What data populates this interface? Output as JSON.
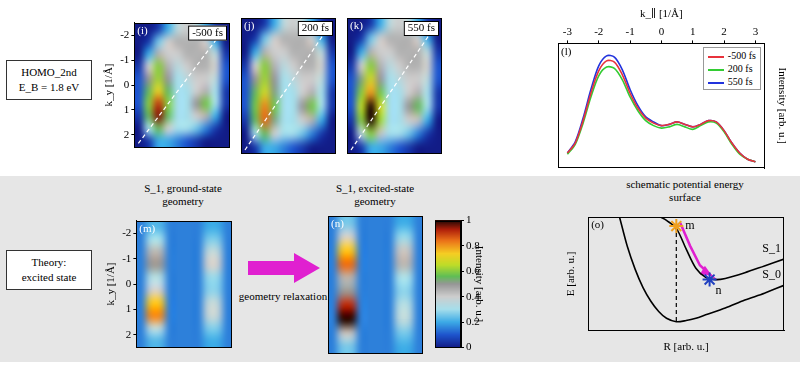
{
  "rows": [
    {
      "label": [
        "HOMO_2nd",
        "E_B = 1.8 eV"
      ]
    },
    {
      "label": [
        "Theory:",
        "excited state"
      ]
    }
  ],
  "arrow_label": "geometry relaxation",
  "chart_data": [
    {
      "type": "heatmap",
      "panel": "(i)",
      "annotation": "-500 fs",
      "ylabel": "k_y [1/Å]",
      "xlim": [
        -2.5,
        2.5
      ],
      "ylim": [
        2.5,
        -2.5
      ],
      "yticks": [
        -2,
        -1,
        0,
        1,
        2
      ],
      "tick_labels": "y",
      "x": [
        -2.25,
        -1.75,
        -1.25,
        -0.75,
        -0.25,
        0.25,
        0.75,
        1.25,
        1.75,
        2.25
      ],
      "y": [
        -2.25,
        -1.75,
        -1.25,
        -0.75,
        -0.25,
        0.25,
        0.75,
        1.25,
        1.75,
        2.25
      ],
      "z": [
        [
          0,
          0,
          0.05,
          0.2,
          0.35,
          0.4,
          0.35,
          0.2,
          0.05,
          0
        ],
        [
          0,
          0.05,
          0.25,
          0.4,
          0.45,
          0.45,
          0.45,
          0.4,
          0.2,
          0
        ],
        [
          0,
          0.2,
          0.45,
          0.4,
          0.4,
          0.45,
          0.45,
          0.45,
          0.35,
          0.05
        ],
        [
          0.05,
          0.4,
          0.6,
          0.45,
          0.35,
          0.4,
          0.45,
          0.45,
          0.4,
          0.1
        ],
        [
          0.1,
          0.5,
          0.62,
          0.5,
          0.3,
          0.35,
          0.4,
          0.4,
          0.35,
          0.1
        ],
        [
          0.1,
          0.55,
          0.72,
          0.55,
          0.3,
          0.3,
          0.4,
          0.45,
          0.3,
          0.05
        ],
        [
          0.1,
          0.6,
          0.9,
          0.6,
          0.3,
          0.3,
          0.5,
          0.58,
          0.3,
          0.05
        ],
        [
          0.05,
          0.55,
          0.95,
          0.55,
          0.3,
          0.3,
          0.4,
          0.45,
          0.2,
          0
        ],
        [
          0,
          0.3,
          0.55,
          0.4,
          0.3,
          0.3,
          0.25,
          0.15,
          0.05,
          0
        ],
        [
          0,
          0.05,
          0.2,
          0.2,
          0.15,
          0.1,
          0.05,
          0,
          0,
          0
        ]
      ]
    },
    {
      "type": "heatmap",
      "panel": "(j)",
      "annotation": "200 fs",
      "xlim": [
        -2.5,
        2.5
      ],
      "ylim": [
        2.5,
        -2.5
      ],
      "tick_labels": false,
      "x": [
        -2.25,
        -1.75,
        -1.25,
        -0.75,
        -0.25,
        0.25,
        0.75,
        1.25,
        1.75,
        2.25
      ],
      "y": [
        -2.25,
        -1.75,
        -1.25,
        -0.75,
        -0.25,
        0.25,
        0.75,
        1.25,
        1.75,
        2.25
      ],
      "z": [
        [
          0,
          0,
          0.05,
          0.2,
          0.35,
          0.4,
          0.35,
          0.2,
          0.05,
          0
        ],
        [
          0,
          0.05,
          0.25,
          0.4,
          0.45,
          0.45,
          0.45,
          0.4,
          0.2,
          0
        ],
        [
          0,
          0.2,
          0.45,
          0.4,
          0.4,
          0.45,
          0.45,
          0.45,
          0.35,
          0.05
        ],
        [
          0.05,
          0.4,
          0.6,
          0.45,
          0.35,
          0.4,
          0.45,
          0.45,
          0.4,
          0.1
        ],
        [
          0.1,
          0.5,
          0.62,
          0.5,
          0.3,
          0.35,
          0.4,
          0.4,
          0.35,
          0.1
        ],
        [
          0.1,
          0.55,
          0.68,
          0.52,
          0.3,
          0.3,
          0.4,
          0.45,
          0.3,
          0.05
        ],
        [
          0.1,
          0.58,
          0.82,
          0.58,
          0.3,
          0.3,
          0.5,
          0.58,
          0.3,
          0.05
        ],
        [
          0.05,
          0.55,
          0.85,
          0.52,
          0.3,
          0.3,
          0.4,
          0.45,
          0.2,
          0
        ],
        [
          0,
          0.3,
          0.55,
          0.4,
          0.3,
          0.3,
          0.25,
          0.15,
          0.05,
          0
        ],
        [
          0,
          0.05,
          0.2,
          0.2,
          0.15,
          0.1,
          0.05,
          0,
          0,
          0
        ]
      ]
    },
    {
      "type": "heatmap",
      "panel": "(k)",
      "annotation": "550 fs",
      "xlim": [
        -2.5,
        2.5
      ],
      "ylim": [
        2.5,
        -2.5
      ],
      "tick_labels": false,
      "x": [
        -2.25,
        -1.75,
        -1.25,
        -0.75,
        -0.25,
        0.25,
        0.75,
        1.25,
        1.75,
        2.25
      ],
      "y": [
        -2.25,
        -1.75,
        -1.25,
        -0.75,
        -0.25,
        0.25,
        0.75,
        1.25,
        1.75,
        2.25
      ],
      "z": [
        [
          0,
          0,
          0.05,
          0.2,
          0.35,
          0.4,
          0.35,
          0.2,
          0.05,
          0
        ],
        [
          0,
          0.05,
          0.25,
          0.4,
          0.45,
          0.45,
          0.45,
          0.4,
          0.2,
          0
        ],
        [
          0,
          0.2,
          0.45,
          0.4,
          0.4,
          0.45,
          0.45,
          0.45,
          0.35,
          0.05
        ],
        [
          0.05,
          0.4,
          0.6,
          0.45,
          0.35,
          0.4,
          0.45,
          0.45,
          0.4,
          0.1
        ],
        [
          0.1,
          0.52,
          0.68,
          0.5,
          0.3,
          0.35,
          0.4,
          0.4,
          0.35,
          0.1
        ],
        [
          0.1,
          0.6,
          0.8,
          0.58,
          0.3,
          0.3,
          0.4,
          0.45,
          0.3,
          0.05
        ],
        [
          0.1,
          0.65,
          1,
          0.68,
          0.3,
          0.3,
          0.5,
          0.55,
          0.3,
          0.05
        ],
        [
          0.05,
          0.6,
          1,
          0.62,
          0.3,
          0.3,
          0.4,
          0.42,
          0.2,
          0
        ],
        [
          0,
          0.35,
          0.6,
          0.42,
          0.3,
          0.3,
          0.25,
          0.15,
          0.05,
          0
        ],
        [
          0,
          0.05,
          0.2,
          0.2,
          0.15,
          0.1,
          0.05,
          0,
          0,
          0
        ]
      ]
    },
    {
      "type": "line",
      "panel": "(l)",
      "xlabel": "k_∥ [1/Å]",
      "ylabel": "Intensity [arb. u.]",
      "xlim": [
        -3.3,
        3.3
      ],
      "xticks": [
        -3,
        -2,
        -1,
        0,
        1,
        2,
        3
      ],
      "ylim": [
        0,
        1
      ],
      "tick_labels": "x",
      "legend": "upper right",
      "x": [
        -3,
        -2.75,
        -2.5,
        -2.25,
        -2,
        -1.75,
        -1.5,
        -1.25,
        -1,
        -0.75,
        -0.5,
        -0.25,
        0,
        0.25,
        0.5,
        0.75,
        1,
        1.25,
        1.5,
        1.75,
        2,
        2.25,
        2.5,
        2.75,
        3
      ],
      "series": [
        {
          "name": "-500 fs",
          "color": "#e8323c",
          "values": [
            0.12,
            0.2,
            0.38,
            0.6,
            0.78,
            0.86,
            0.85,
            0.75,
            0.6,
            0.48,
            0.4,
            0.36,
            0.34,
            0.35,
            0.37,
            0.35,
            0.33,
            0.35,
            0.38,
            0.37,
            0.3,
            0.2,
            0.12,
            0.07,
            0.05
          ]
        },
        {
          "name": "200 fs",
          "color": "#33cc33",
          "values": [
            0.11,
            0.19,
            0.36,
            0.57,
            0.74,
            0.81,
            0.8,
            0.71,
            0.57,
            0.46,
            0.38,
            0.34,
            0.32,
            0.33,
            0.35,
            0.33,
            0.31,
            0.34,
            0.37,
            0.36,
            0.29,
            0.19,
            0.11,
            0.07,
            0.05
          ]
        },
        {
          "name": "550 fs",
          "color": "#2233dd",
          "values": [
            0.12,
            0.21,
            0.4,
            0.63,
            0.82,
            0.9,
            0.89,
            0.79,
            0.63,
            0.5,
            0.41,
            0.37,
            0.34,
            0.35,
            0.37,
            0.35,
            0.33,
            0.35,
            0.38,
            0.37,
            0.3,
            0.2,
            0.12,
            0.07,
            0.05
          ]
        }
      ]
    },
    {
      "type": "heatmap",
      "panel": "(m)",
      "title": "S_1, ground-state geometry",
      "ylabel": "k_y [1/Å]",
      "xlim": [
        -2.5,
        2.5
      ],
      "ylim": [
        2.5,
        -2.5
      ],
      "yticks": [
        -2,
        -1,
        0,
        1,
        2
      ],
      "tick_labels": "y",
      "x": [
        -2.25,
        -1.75,
        -1.25,
        -0.75,
        -0.25,
        0.25,
        0.75,
        1.25,
        1.75,
        2.25
      ],
      "y": [
        -2.25,
        -1.75,
        -1.25,
        -0.75,
        -0.25,
        0.25,
        0.75,
        1.25,
        1.75,
        2.25
      ],
      "z": [
        [
          0.15,
          0.22,
          0.22,
          0.15,
          0.15,
          0.15,
          0.15,
          0.2,
          0.2,
          0.15
        ],
        [
          0.15,
          0.3,
          0.3,
          0.15,
          0.15,
          0.15,
          0.15,
          0.26,
          0.26,
          0.15
        ],
        [
          0.15,
          0.45,
          0.45,
          0.15,
          0.15,
          0.15,
          0.15,
          0.36,
          0.36,
          0.15
        ],
        [
          0.15,
          0.5,
          0.5,
          0.15,
          0.15,
          0.15,
          0.15,
          0.4,
          0.4,
          0.15
        ],
        [
          0.15,
          0.32,
          0.32,
          0.15,
          0.15,
          0.15,
          0.15,
          0.28,
          0.28,
          0.15
        ],
        [
          0.15,
          0.4,
          0.4,
          0.15,
          0.15,
          0.15,
          0.15,
          0.27,
          0.27,
          0.15
        ],
        [
          0.15,
          0.75,
          0.75,
          0.15,
          0.15,
          0.15,
          0.15,
          0.36,
          0.36,
          0.15
        ],
        [
          0.15,
          0.82,
          0.82,
          0.15,
          0.15,
          0.15,
          0.15,
          0.37,
          0.37,
          0.15
        ],
        [
          0.15,
          0.35,
          0.35,
          0.15,
          0.15,
          0.15,
          0.15,
          0.26,
          0.26,
          0.15
        ],
        [
          0.15,
          0.22,
          0.22,
          0.15,
          0.15,
          0.15,
          0.15,
          0.2,
          0.2,
          0.15
        ]
      ]
    },
    {
      "type": "heatmap",
      "panel": "(n)",
      "title": "S_1, excited-state geometry",
      "xlim": [
        -2.5,
        2.5
      ],
      "ylim": [
        2.5,
        -2.5
      ],
      "tick_labels": false,
      "x": [
        -2.25,
        -1.75,
        -1.25,
        -0.75,
        -0.25,
        0.25,
        0.75,
        1.25,
        1.75,
        2.25
      ],
      "y": [
        -2.25,
        -1.75,
        -1.25,
        -0.75,
        -0.25,
        0.25,
        0.75,
        1.25,
        1.75,
        2.25
      ],
      "z": [
        [
          0.15,
          0.25,
          0.25,
          0.15,
          0.15,
          0.15,
          0.15,
          0.2,
          0.2,
          0.15
        ],
        [
          0.15,
          0.4,
          0.4,
          0.15,
          0.15,
          0.15,
          0.15,
          0.28,
          0.28,
          0.15
        ],
        [
          0.15,
          0.75,
          0.75,
          0.15,
          0.15,
          0.15,
          0.15,
          0.42,
          0.42,
          0.15
        ],
        [
          0.15,
          0.85,
          0.85,
          0.15,
          0.15,
          0.15,
          0.15,
          0.45,
          0.45,
          0.15
        ],
        [
          0.15,
          0.45,
          0.45,
          0.15,
          0.15,
          0.15,
          0.15,
          0.3,
          0.3,
          0.15
        ],
        [
          0.15,
          0.5,
          0.5,
          0.15,
          0.15,
          0.15,
          0.15,
          0.27,
          0.27,
          0.15
        ],
        [
          0.15,
          0.92,
          0.92,
          0.15,
          0.15,
          0.15,
          0.15,
          0.33,
          0.33,
          0.15
        ],
        [
          0.15,
          1,
          1,
          0.15,
          0.15,
          0.15,
          0.15,
          0.35,
          0.35,
          0.15
        ],
        [
          0.15,
          0.42,
          0.42,
          0.15,
          0.15,
          0.15,
          0.15,
          0.25,
          0.25,
          0.15
        ],
        [
          0.15,
          0.25,
          0.25,
          0.15,
          0.15,
          0.15,
          0.15,
          0.2,
          0.2,
          0.15
        ]
      ],
      "colorbar": {
        "range": [
          0,
          1
        ],
        "ticks": [
          0,
          0.2,
          0.4,
          0.6,
          0.8,
          1
        ],
        "label": "Intensity [arb. u.]"
      }
    },
    {
      "type": "line",
      "panel": "(o)",
      "title": "schematic potential energy surface",
      "xlabel": "R [arb. u.]",
      "ylabel": "E [arb. u.]",
      "xlim": [
        0,
        1
      ],
      "ylim": [
        0,
        1
      ],
      "tick_labels": false,
      "series": [
        {
          "name": "S_1",
          "color": "#000000",
          "x": [
            0.37,
            0.4,
            0.45,
            0.5,
            0.55,
            0.6,
            0.65,
            0.7,
            0.8,
            0.9,
            1.0
          ],
          "values": [
            1.0,
            0.97,
            0.9,
            0.72,
            0.55,
            0.47,
            0.45,
            0.46,
            0.51,
            0.57,
            0.63
          ]
        },
        {
          "name": "S_0",
          "color": "#000000",
          "x": [
            0.16,
            0.2,
            0.24,
            0.28,
            0.32,
            0.36,
            0.4,
            0.45,
            0.5,
            0.55,
            0.6,
            0.7,
            0.8,
            0.9,
            1.0
          ],
          "values": [
            1.0,
            0.74,
            0.54,
            0.38,
            0.26,
            0.17,
            0.11,
            0.08,
            0.09,
            0.11,
            0.14,
            0.2,
            0.27,
            0.33,
            0.4
          ]
        }
      ],
      "points": [
        {
          "name": "m",
          "x": 0.45,
          "y": 0.92,
          "color": "#f0a020",
          "marker": "star"
        },
        {
          "name": "n",
          "x": 0.62,
          "y": 0.45,
          "color": "#2040c0",
          "marker": "star"
        }
      ]
    }
  ]
}
